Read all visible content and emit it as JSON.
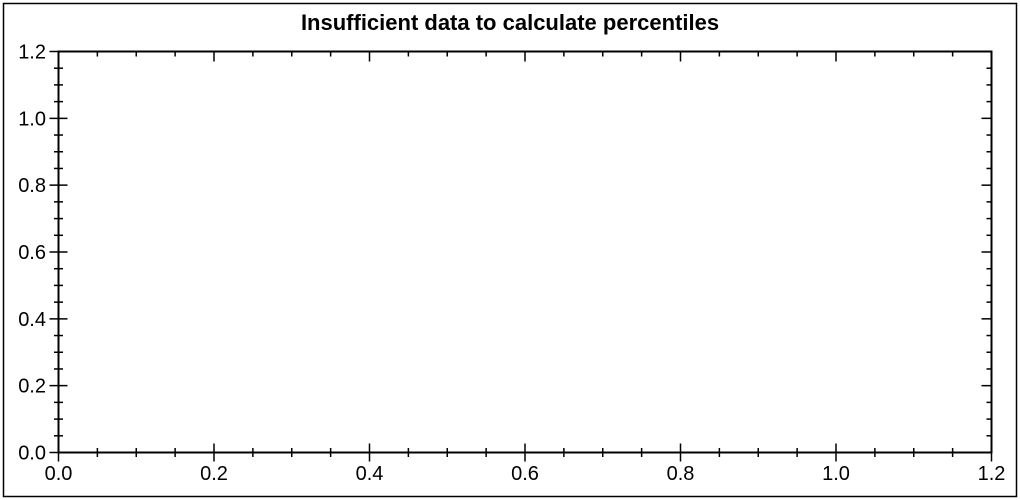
{
  "window": {
    "background_color": "#ffffff",
    "frame_border_color": "#000000"
  },
  "chart_data": {
    "type": "scatter",
    "title": "Insufficient data to calculate percentiles",
    "series": [],
    "xlabel": "",
    "ylabel": "",
    "xlim": [
      0.0,
      1.2
    ],
    "ylim": [
      0.0,
      1.2
    ],
    "x_ticks": [
      0.0,
      0.2,
      0.4,
      0.6,
      0.8,
      1.0,
      1.2
    ],
    "x_tick_labels": [
      "0.0",
      "0.2",
      "0.4",
      "0.6",
      "0.8",
      "1.0",
      "1.2"
    ],
    "y_ticks": [
      0.0,
      0.2,
      0.4,
      0.6,
      0.8,
      1.0,
      1.2
    ],
    "y_tick_labels": [
      "0.0",
      "0.2",
      "0.4",
      "0.6",
      "0.8",
      "1.0",
      "1.2"
    ],
    "minor_tick_step": 0.05,
    "grid": false,
    "legend": false,
    "axis_color": "#000000",
    "tick_label_color": "#000000",
    "title_color": "#000000",
    "plot_background": "#ffffff"
  }
}
